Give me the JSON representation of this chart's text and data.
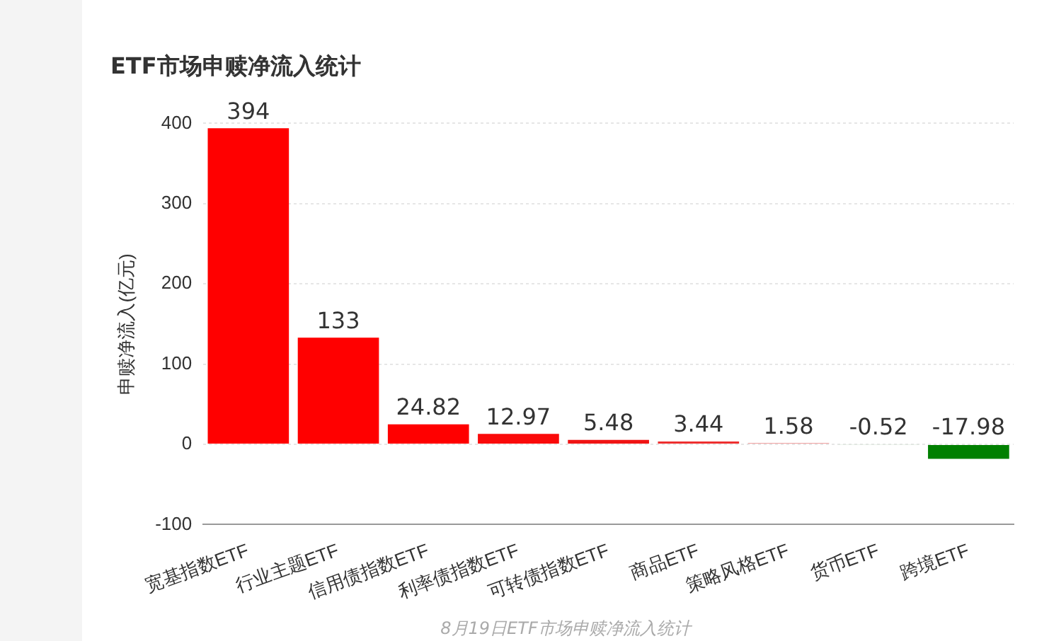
{
  "chart_data": {
    "type": "bar",
    "title": "ETF市场申赎净流入统计",
    "ylabel": "申赎净流入(亿元)",
    "categories": [
      "宽基指数ETF",
      "行业主题ETF",
      "信用债指数ETF",
      "利率债指数ETF",
      "可转债指数ETF",
      "商品ETF",
      "策略风格ETF",
      "货币ETF",
      "跨境ETF"
    ],
    "values": [
      394,
      133,
      24.82,
      12.97,
      5.48,
      3.44,
      1.58,
      -0.52,
      -17.98
    ],
    "colors": [
      "#ff0000",
      "#ff0000",
      "#ff0000",
      "#fa0a0a",
      "#f01414",
      "#ee3030",
      "#e88080",
      "#d8e8d8",
      "#008000"
    ],
    "ylim": [
      -100,
      400
    ],
    "yticks": [
      -100,
      0,
      100,
      200,
      300,
      400
    ],
    "grid": "y",
    "data_labels": true,
    "legend": false,
    "annotations": [
      "8月19日ETF市场申赎净流入统计"
    ]
  }
}
